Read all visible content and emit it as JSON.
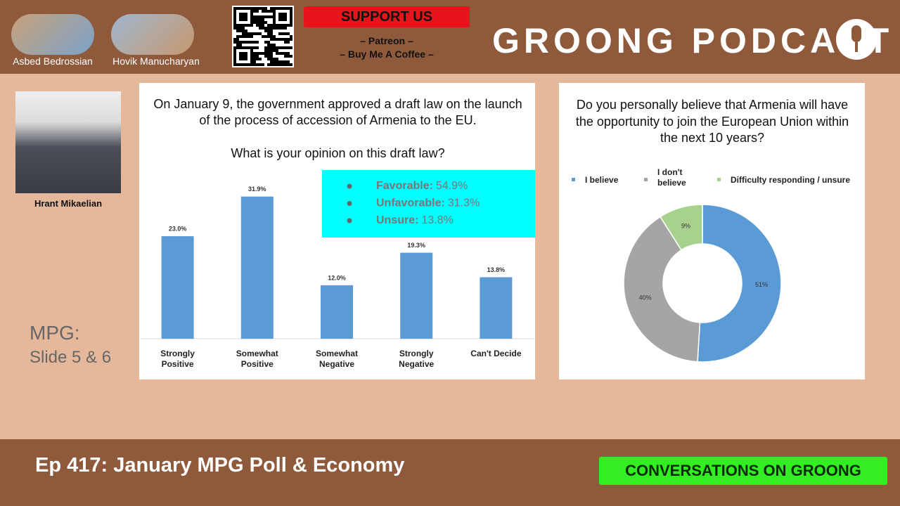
{
  "header": {
    "hosts": [
      "Asbed Bedrossian",
      "Hovik Manucharyan"
    ],
    "support": "SUPPORT US",
    "links": [
      "– Patreon –",
      "– Buy Me A Coffee –"
    ],
    "brand": "GROONG PODCAST"
  },
  "guest": "Hrant Mikaelian",
  "slide_note": [
    "MPG:",
    "Slide 5 & 6"
  ],
  "chart_data": [
    {
      "type": "bar",
      "title": "On January 9, the government approved a draft law on the launch of the process of accession of Armenia to the EU.",
      "subtitle": "What is your opinion on this draft law?",
      "categories": [
        "Strongly Positive",
        "Somewhat Positive",
        "Somewhat Negative",
        "Strongly Negative",
        "Can't Decide"
      ],
      "values": [
        23.0,
        31.9,
        12.0,
        19.3,
        13.8
      ],
      "value_labels": [
        "23.0%",
        "31.9%",
        "12.0%",
        "19.3%",
        "13.8%"
      ],
      "color": "#5b9bd5",
      "ylim": [
        0,
        35
      ],
      "annotations": [
        {
          "label": "Favorable:",
          "value": "54.9%"
        },
        {
          "label": "Unfavorable:",
          "value": "31.3%"
        },
        {
          "label": "Unsure:",
          "value": "13.8%"
        }
      ]
    },
    {
      "type": "donut",
      "title": "Do you personally believe that Armenia will have the opportunity to join the European Union within the next 10 years?",
      "categories": [
        "I believe",
        "I don't believe",
        "Difficulty responding / unsure"
      ],
      "values": [
        51,
        40,
        9
      ],
      "value_labels": [
        "51%",
        "40%",
        "9%"
      ],
      "colors": [
        "#5b9bd5",
        "#a5a5a5",
        "#a9d18e"
      ],
      "legend": "top"
    }
  ],
  "footer": {
    "episode": "Ep 417: January MPG Poll & Economy",
    "badge": "CONVERSATIONS ON GROONG"
  }
}
